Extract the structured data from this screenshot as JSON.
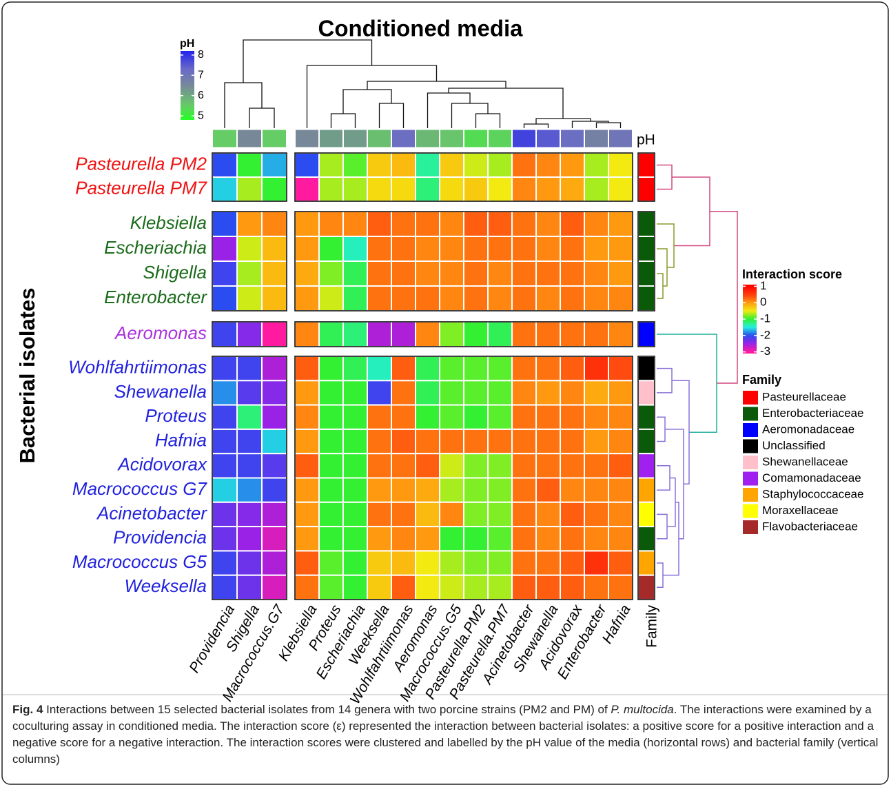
{
  "chart_data": {
    "type": "heatmap",
    "title": "Conditioned media",
    "y_label": "Bacterial isolates",
    "ph_row_label": "pH",
    "family_column_label": "Family",
    "column_groups": [
      {
        "columns": [
          {
            "label": "Providencia",
            "ph": 5.5
          },
          {
            "label": "Shigella",
            "ph": 6.5
          },
          {
            "label": "Macrococcus.G7",
            "ph": 5.5
          }
        ]
      },
      {
        "columns": [
          {
            "label": "Klebsiella",
            "ph": 6.5
          },
          {
            "label": "Proteus",
            "ph": 6.2
          },
          {
            "label": "Escheriachia",
            "ph": 6.2
          },
          {
            "label": "Weeksella",
            "ph": 5.7
          },
          {
            "label": "Wohlfahrtiimonas",
            "ph": 7.2
          },
          {
            "label": "Aeromonas",
            "ph": 5.8
          },
          {
            "label": "Macrococcus.G5",
            "ph": 5.6
          },
          {
            "label": "Pasteurella.PM2",
            "ph": 5.3
          },
          {
            "label": "Pasteurella.PM7",
            "ph": 5.4
          },
          {
            "label": "Acinetobacter",
            "ph": 7.8
          },
          {
            "label": "Shewanella",
            "ph": 7.5
          },
          {
            "label": "Acidovorax",
            "ph": 7.2
          },
          {
            "label": "Enterobacter",
            "ph": 6.7
          },
          {
            "label": "Hafnia",
            "ph": 7.0
          }
        ]
      }
    ],
    "row_groups": [
      {
        "label_color": "#ee1111",
        "rows": [
          {
            "label": "Pasteurella PM2",
            "family": "Pasteurellaceae",
            "values": [
              -2,
              -1,
              -1.7,
              -2,
              -0.7,
              -0.9,
              -0.3,
              -0.2,
              -1.3,
              -0.3,
              -0.6,
              -0.7,
              0.2,
              0.1,
              0,
              -0.7,
              -0.5
            ]
          },
          {
            "label": "Pasteurella PM7",
            "family": "Pasteurellaceae",
            "values": [
              -1.6,
              -0.7,
              -1,
              -3,
              -0.7,
              -0.7,
              -0.4,
              -0.4,
              -1.2,
              -0.4,
              -0.3,
              -0.5,
              0.1,
              0,
              -0.1,
              -0.7,
              -0.5
            ]
          }
        ]
      },
      {
        "label_color": "#1a6b1a",
        "rows": [
          {
            "label": "Klebsiella",
            "family": "Enterobacteriaceae",
            "values": [
              -2,
              0,
              0.1,
              0,
              0.1,
              0.1,
              0.3,
              0.2,
              0.2,
              0.1,
              0.3,
              0.3,
              0.2,
              0.1,
              0.3,
              0.1,
              0
            ]
          },
          {
            "label": "Escheriachia",
            "family": "Enterobacteriaceae",
            "values": [
              -2.5,
              -0.6,
              -0.2,
              0,
              -1,
              -1.4,
              0.2,
              0.2,
              0.1,
              0.1,
              0.2,
              0.2,
              0.2,
              0.1,
              0.2,
              0,
              0
            ]
          },
          {
            "label": "Shigella",
            "family": "Enterobacteriaceae",
            "values": [
              -2.1,
              -0.7,
              -0.2,
              -0.1,
              -0.8,
              -1.1,
              0.2,
              0.2,
              0.1,
              0.1,
              0.2,
              0.1,
              0.2,
              0.2,
              0.2,
              0.1,
              0
            ]
          },
          {
            "label": "Enterobacter",
            "family": "Enterobacteriaceae",
            "values": [
              -2,
              -0.6,
              -0.2,
              0,
              -0.6,
              -1.1,
              0.2,
              0.2,
              0.2,
              0.1,
              0.2,
              0.1,
              0.2,
              0.1,
              0.2,
              0.1,
              0.1
            ]
          }
        ]
      },
      {
        "label_color": "#aa33dd",
        "rows": [
          {
            "label": "Aeromonas",
            "family": "Aeromonadaceae",
            "values": [
              -2.1,
              -2.4,
              -3,
              0.1,
              -1.1,
              -1.2,
              -2.6,
              -2.6,
              0.1,
              -0.8,
              -1,
              -1.1,
              0.2,
              0.2,
              0.2,
              0.2,
              0.1
            ]
          }
        ]
      },
      {
        "label_color": "#2222dd",
        "rows": [
          {
            "label": "Wohlfahrtiimonas",
            "family": "Unclassified",
            "values": [
              -2.1,
              -2.1,
              -2.6,
              0.3,
              -1,
              -1.1,
              -1.4,
              0.3,
              -1.1,
              -0.9,
              -0.9,
              -0.9,
              0.2,
              0.2,
              0.3,
              0.6,
              0.4
            ]
          },
          {
            "label": "Shewanella",
            "family": "Shewanellaceae",
            "values": [
              -1.8,
              -2.2,
              -2.4,
              0,
              -1,
              -1,
              -2.1,
              0.2,
              -1.1,
              -0.9,
              -0.9,
              -0.9,
              0.1,
              0,
              0.1,
              -0.1,
              0
            ]
          },
          {
            "label": "Proteus",
            "family": "Enterobacteriaceae",
            "values": [
              -2.1,
              -1.2,
              -2.5,
              0.1,
              -1,
              -1,
              0.2,
              0.2,
              -1,
              -0.9,
              -1,
              -0.9,
              0.2,
              0.2,
              0.2,
              0.1,
              0.1
            ]
          },
          {
            "label": "Hafnia",
            "family": "Enterobacteriaceae",
            "values": [
              -2.1,
              -2.1,
              -1.6,
              0,
              -1,
              -1,
              0.2,
              0.3,
              0.2,
              0.2,
              0.2,
              0.2,
              0.2,
              0.2,
              0.2,
              0,
              0.1
            ]
          },
          {
            "label": "Acidovorax",
            "family": "Comamonadaceae",
            "values": [
              -2.1,
              -2.1,
              -2.2,
              0.3,
              -1,
              -1,
              0.2,
              0.2,
              0.3,
              -0.6,
              -0.8,
              -0.8,
              0.2,
              0.2,
              0.2,
              0.2,
              0.3
            ]
          },
          {
            "label": "Macrococcus G7",
            "family": "Staphylococcaceae",
            "values": [
              -1.6,
              -1.8,
              -2.1,
              0,
              -1,
              -1,
              0,
              0,
              -0.1,
              -0.7,
              -0.8,
              -0.8,
              0.2,
              0.3,
              0.1,
              0.1,
              0.1
            ]
          },
          {
            "label": "Acinetobacter",
            "family": "Moraxellaceae",
            "values": [
              -2.3,
              -2.4,
              -2.6,
              0,
              -1,
              -1,
              0.2,
              0.2,
              -0.2,
              0.1,
              -0.8,
              -0.8,
              0.2,
              0.1,
              0.3,
              0.2,
              0.1
            ]
          },
          {
            "label": "Providencia",
            "family": "Enterobacteriaceae",
            "values": [
              -2.3,
              -2.5,
              -2.8,
              0,
              -1,
              -1,
              0,
              0.1,
              0,
              -1,
              -1,
              -0.9,
              0.2,
              0.1,
              0.2,
              0.1,
              0.1
            ]
          },
          {
            "label": "Macrococcus G5",
            "family": "Staphylococcaceae",
            "values": [
              -2.1,
              -2.3,
              -2.6,
              0.3,
              -0.9,
              -1,
              -0.3,
              -0.2,
              -0.5,
              -0.7,
              -0.8,
              -0.8,
              0.2,
              0.2,
              0.3,
              0.6,
              0.3
            ]
          },
          {
            "label": "Weeksella",
            "family": "Flavobacteriaceae",
            "values": [
              -2.1,
              -2.3,
              -2.8,
              0.2,
              -0.9,
              -1,
              -0.3,
              0.3,
              -0.5,
              -0.6,
              -0.7,
              -0.7,
              0.3,
              0.3,
              0.3,
              0.2,
              0.2
            ]
          }
        ]
      }
    ],
    "colorbar": {
      "title": "Interaction score",
      "zlim": [
        -3.1,
        1.1
      ],
      "ticks": [
        1,
        0,
        -1,
        -2,
        -3
      ],
      "stops": [
        {
          "value": 1,
          "color": "#ff0000"
        },
        {
          "value": 0.4,
          "color": "#ff4a10"
        },
        {
          "value": 0,
          "color": "#ff9a10"
        },
        {
          "value": -0.5,
          "color": "#f2ea10"
        },
        {
          "value": -1,
          "color": "#33f033"
        },
        {
          "value": -1.5,
          "color": "#22f0e0"
        },
        {
          "value": -2,
          "color": "#2a4cf0"
        },
        {
          "value": -2.5,
          "color": "#9a22e6"
        },
        {
          "value": -3,
          "color": "#ff1aa0"
        }
      ]
    },
    "ph_legend": {
      "title": "pH",
      "zlim": [
        4.8,
        8.2
      ],
      "ticks": [
        5,
        6,
        7,
        8
      ],
      "stops": [
        {
          "value": 4.8,
          "color": "#22ff22"
        },
        {
          "value": 5.5,
          "color": "#66cc66"
        },
        {
          "value": 6.5,
          "color": "#778899"
        },
        {
          "value": 7.3,
          "color": "#6a6ac8"
        },
        {
          "value": 8.2,
          "color": "#2222ee"
        }
      ]
    },
    "family_legend": {
      "title": "Family",
      "items": [
        {
          "name": "Pasteurellaceae",
          "color": "#ff0000"
        },
        {
          "name": "Enterobacteriaceae",
          "color": "#0a5a0a"
        },
        {
          "name": "Aeromonadaceae",
          "color": "#0000ff"
        },
        {
          "name": "Unclassified",
          "color": "#000000"
        },
        {
          "name": "Shewanellaceae",
          "color": "#ffc0cb"
        },
        {
          "name": "Comamonadaceae",
          "color": "#a020f0"
        },
        {
          "name": "Staphylococcaceae",
          "color": "#ffa500"
        },
        {
          "name": "Moraxellaceae",
          "color": "#ffff00"
        },
        {
          "name": "Flavobacteriaceae",
          "color": "#a52a2a"
        }
      ]
    },
    "caption": {
      "label": "Fig. 4",
      "text_before": "Interactions between 15 selected bacterial isolates from 14 genera with two porcine strains (PM2 and PM) of",
      "italic": "P. multocida",
      "text_after": ". The interactions were examined by a coculturing assay in conditioned media. The interaction score (ε) represented the interaction between bacterial isolates: a positive score for a positive interaction and a negative score for a negative interaction. The interaction scores were clustered and labelled by the pH value of the media (horizontal rows) and bacterial family (vertical columns)"
    }
  }
}
